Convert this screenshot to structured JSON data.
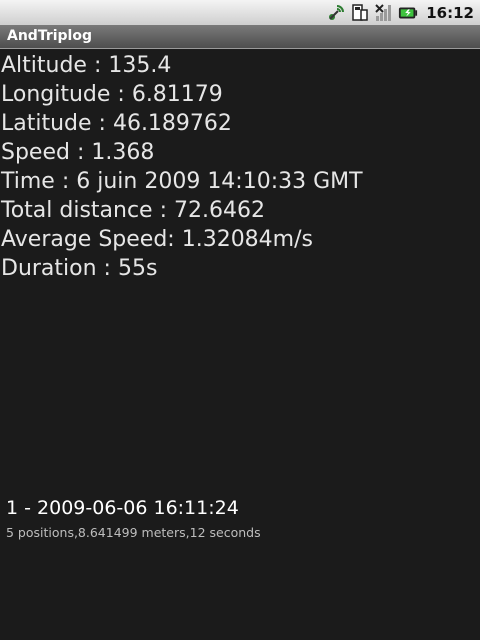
{
  "status_bar": {
    "time": "16:12",
    "icons": [
      "gps-icon",
      "sd-card-icon",
      "signal-icon",
      "battery-icon"
    ]
  },
  "app": {
    "title": "AndTriplog"
  },
  "info": {
    "altitude": "Altitude : 135.4",
    "longitude": "Longitude : 6.81179",
    "latitude": "Latitude : 46.189762",
    "speed": "Speed : 1.368",
    "time": "Time : 6 juin 2009 14:10:33 GMT",
    "total_distance": "Total distance : 72.6462",
    "average_speed": "Average Speed: 1.32084m/s",
    "duration": "Duration : 55s"
  },
  "trips": [
    {
      "title": "1 - 2009-06-06 16:11:24",
      "summary": "5 positions,8.641499 meters,12 seconds"
    }
  ],
  "colors": {
    "background": "#1b1b1b",
    "text": "#e6e6e6",
    "battery_green": "#3ec23e"
  }
}
